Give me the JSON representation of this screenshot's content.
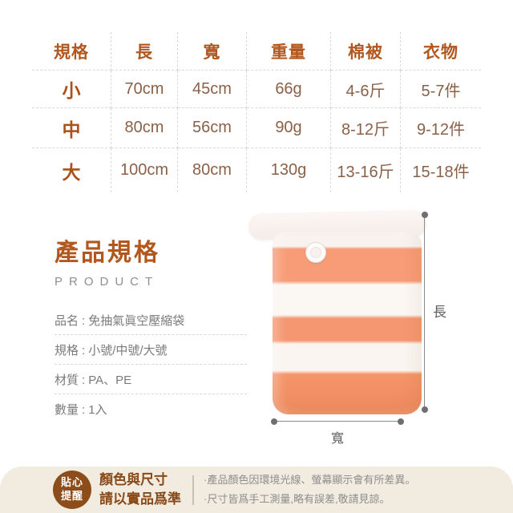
{
  "spec_table": {
    "headers": [
      "規格",
      "長",
      "寬",
      "重量",
      "棉被",
      "衣物"
    ],
    "rows": [
      {
        "size": "小",
        "length": "70cm",
        "width": "45cm",
        "weight": "66g",
        "quilt": "4-6斤",
        "clothing": "5-7件"
      },
      {
        "size": "中",
        "length": "80cm",
        "width": "56cm",
        "weight": "90g",
        "quilt": "8-12斤",
        "clothing": "9-12件"
      },
      {
        "size": "大",
        "length": "100cm",
        "width": "80cm",
        "weight": "130g",
        "quilt": "13-16斤",
        "clothing": "15-18件"
      }
    ]
  },
  "product": {
    "title": "產品規格",
    "subtitle": "PRODUCT",
    "colon": ":",
    "details": [
      {
        "label": "品名",
        "value": "免抽氣眞空壓縮袋"
      },
      {
        "label": "規格",
        "value": "小號/中號/大號"
      },
      {
        "label": "材質",
        "value": "PA、PE"
      },
      {
        "label": "數量",
        "value": "1入"
      }
    ]
  },
  "image": {
    "length_label": "長",
    "width_label": "寬",
    "valve_icon": "air-valve-icon"
  },
  "notice": {
    "badge": [
      "貼心",
      "提醒"
    ],
    "headline": [
      "顏色與尺寸",
      "請以實品爲準"
    ],
    "notes": [
      "·產品顏色因環境光線、螢幕顯示會有所差異。",
      "·尺寸皆爲手工測量,略有誤差,敬請見諒。"
    ]
  },
  "colors": {
    "brand_brown": "#b2571d",
    "table_value_brown": "#8a6148",
    "badge_brown": "#8d4d1a",
    "stripe_orange": "#f69b74",
    "notice_beige": "#f1ebe0",
    "detail_gray": "#7b7b7b",
    "dimension_gray": "#6f6f6f"
  }
}
